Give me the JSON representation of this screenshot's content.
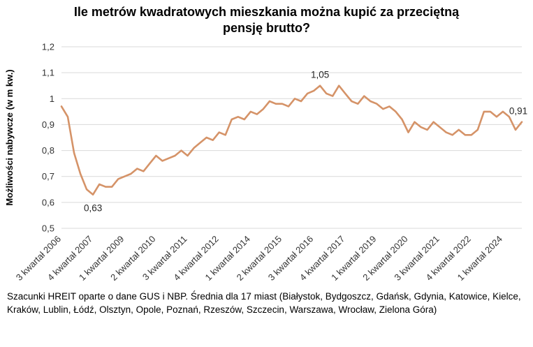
{
  "chart_data": {
    "type": "line",
    "title": "Ile metrów kwadratowych mieszkania można kupić za przeciętną\npensję brutto?",
    "ylabel": "Możliwości nabywcze (w m kw.)",
    "xlabel": "",
    "ylim": [
      0.5,
      1.2
    ],
    "ytick_step": 0.1,
    "ytick_labels": [
      "0,5",
      "0,6",
      "0,7",
      "0,8",
      "0,9",
      "1",
      "1,1",
      "1,2"
    ],
    "grid": true,
    "legend": "none",
    "line_color": "#D59368",
    "x_tick_every": 5,
    "x_tick_labels": [
      "3 kwartał 2006",
      "4 kwartał 2007",
      "1 kwartał 2009",
      "2 kwartał 2010",
      "3 kwartał 2011",
      "4 kwartał 2012",
      "1 kwartał 2014",
      "2 kwartał 2015",
      "3 kwartał 2016",
      "4 kwartał 2017",
      "1 kwartał 2019",
      "2 kwartał 2020",
      "3 kwartał 2021",
      "4 kwartał 2022",
      "1 kwartał 2024"
    ],
    "values": [
      0.97,
      0.93,
      0.79,
      0.71,
      0.65,
      0.63,
      0.67,
      0.66,
      0.66,
      0.69,
      0.7,
      0.71,
      0.73,
      0.72,
      0.75,
      0.78,
      0.76,
      0.77,
      0.78,
      0.8,
      0.78,
      0.81,
      0.83,
      0.85,
      0.84,
      0.87,
      0.86,
      0.92,
      0.93,
      0.92,
      0.95,
      0.94,
      0.96,
      0.99,
      0.98,
      0.98,
      0.97,
      1.0,
      0.99,
      1.02,
      1.03,
      1.05,
      1.02,
      1.01,
      1.05,
      1.02,
      0.99,
      0.98,
      1.01,
      0.99,
      0.98,
      0.96,
      0.97,
      0.95,
      0.92,
      0.87,
      0.91,
      0.89,
      0.88,
      0.91,
      0.89,
      0.87,
      0.86,
      0.88,
      0.86,
      0.86,
      0.88,
      0.95,
      0.95,
      0.93,
      0.95,
      0.93,
      0.88,
      0.91
    ],
    "annotations": [
      {
        "index": 5,
        "label": "0,63",
        "placement": "below"
      },
      {
        "index": 41,
        "label": "1,05",
        "placement": "above"
      },
      {
        "index": 73,
        "label": "0,91",
        "placement": "above"
      }
    ]
  },
  "footer": {
    "note": "Szacunki HREIT oparte o dane GUS i NBP. Średnia dla 17 miast (Białystok, Bydgoszcz, Gdańsk, Gdynia, Katowice, Kielce, Kraków, Lublin, Łódź, Olsztyn, Opole, Poznań, Rzeszów, Szczecin, Warszawa, Wrocław, Zielona Góra)"
  }
}
